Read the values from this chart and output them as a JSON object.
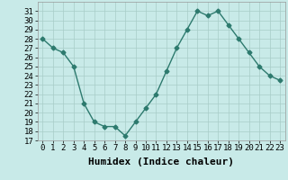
{
  "x": [
    0,
    1,
    2,
    3,
    4,
    5,
    6,
    7,
    8,
    9,
    10,
    11,
    12,
    13,
    14,
    15,
    16,
    17,
    18,
    19,
    20,
    21,
    22,
    23
  ],
  "y": [
    28,
    27,
    26.5,
    25,
    21,
    19,
    18.5,
    18.5,
    17.5,
    19,
    20.5,
    22,
    24.5,
    27,
    29,
    31,
    30.5,
    31,
    29.5,
    28,
    26.5,
    25,
    24,
    23.5
  ],
  "line_color": "#2d7a6e",
  "marker": "D",
  "marker_size": 2.5,
  "bg_color": "#c8eae8",
  "grid_color": "#a8ccc8",
  "xlabel": "Humidex (Indice chaleur)",
  "ylim": [
    17,
    32
  ],
  "xlim": [
    -0.5,
    23.5
  ],
  "yticks": [
    17,
    18,
    19,
    20,
    21,
    22,
    23,
    24,
    25,
    26,
    27,
    28,
    29,
    30,
    31
  ],
  "xticks": [
    0,
    1,
    2,
    3,
    4,
    5,
    6,
    7,
    8,
    9,
    10,
    11,
    12,
    13,
    14,
    15,
    16,
    17,
    18,
    19,
    20,
    21,
    22,
    23
  ],
  "xlabel_fontsize": 8,
  "tick_fontsize": 6.5,
  "line_width": 1.0
}
